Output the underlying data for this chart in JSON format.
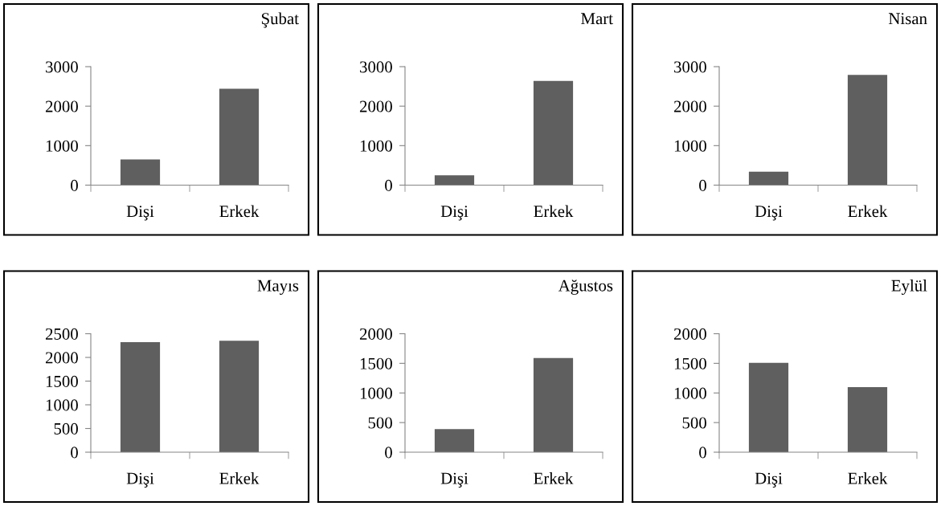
{
  "chart_data": [
    {
      "type": "bar",
      "title": "Şubat",
      "categories": [
        "Dişi",
        "Erkek"
      ],
      "values": [
        650,
        2440
      ],
      "color": "#5f5f5f",
      "ylim": [
        0,
        3000
      ],
      "yticks": [
        0,
        1000,
        2000,
        3000
      ]
    },
    {
      "type": "bar",
      "title": "Mart",
      "categories": [
        "Dişi",
        "Erkek"
      ],
      "values": [
        250,
        2640
      ],
      "color": "#5f5f5f",
      "ylim": [
        0,
        3000
      ],
      "yticks": [
        0,
        1000,
        2000,
        3000
      ]
    },
    {
      "type": "bar",
      "title": "Nisan",
      "categories": [
        "Dişi",
        "Erkek"
      ],
      "values": [
        340,
        2790
      ],
      "color": "#5f5f5f",
      "ylim": [
        0,
        3000
      ],
      "yticks": [
        0,
        1000,
        2000,
        3000
      ]
    },
    {
      "type": "bar",
      "title": "Mayıs",
      "categories": [
        "Dişi",
        "Erkek"
      ],
      "values": [
        2320,
        2350
      ],
      "color": "#5f5f5f",
      "ylim": [
        0,
        2500
      ],
      "yticks": [
        0,
        500,
        1000,
        1500,
        2000,
        2500
      ]
    },
    {
      "type": "bar",
      "title": "Ağustos",
      "categories": [
        "Dişi",
        "Erkek"
      ],
      "values": [
        390,
        1590
      ],
      "color": "#5f5f5f",
      "ylim": [
        0,
        2000
      ],
      "yticks": [
        0,
        500,
        1000,
        1500,
        2000
      ]
    },
    {
      "type": "bar",
      "title": "Eylül",
      "categories": [
        "Dişi",
        "Erkek"
      ],
      "values": [
        1510,
        1100
      ],
      "color": "#5f5f5f",
      "ylim": [
        0,
        2000
      ],
      "yticks": [
        0,
        500,
        1000,
        1500,
        2000
      ]
    }
  ]
}
